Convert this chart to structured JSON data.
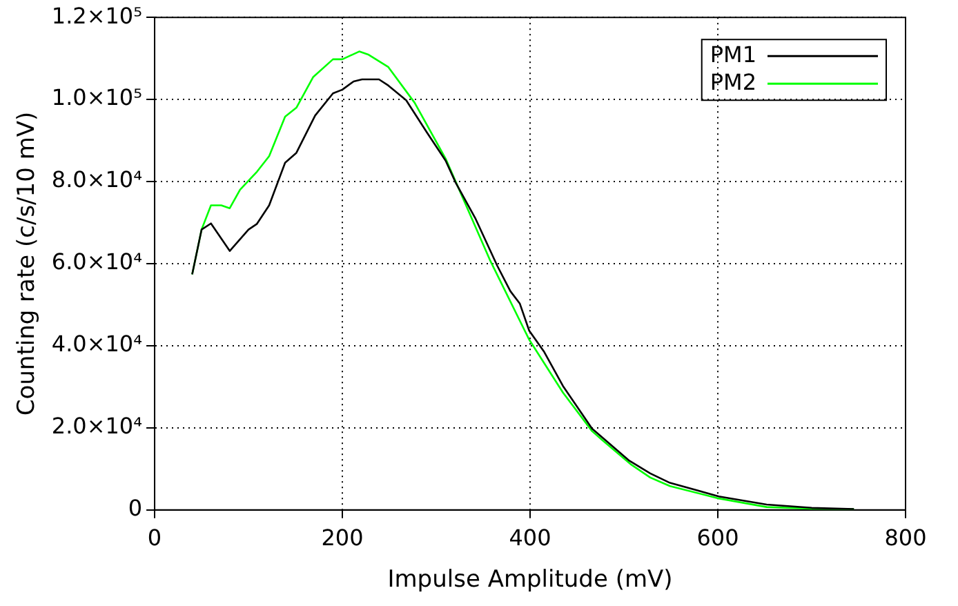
{
  "chart_data": {
    "type": "line",
    "xlabel": "Impulse Amplitude (mV)",
    "ylabel": "Counting rate (c/s/10 mV)",
    "xlim": [
      0,
      800
    ],
    "xticks": [
      0,
      200,
      400,
      600,
      800
    ],
    "ylim": [
      0,
      120000
    ],
    "yticks": [
      {
        "value": 0,
        "label": "0"
      },
      {
        "value": 20000,
        "label": "2.0×10⁴"
      },
      {
        "value": 40000,
        "label": "4.0×10⁴"
      },
      {
        "value": 60000,
        "label": "6.0×10⁴"
      },
      {
        "value": 80000,
        "label": "8.0×10⁴"
      },
      {
        "value": 100000,
        "label": "1.0×10⁵"
      },
      {
        "value": 120000,
        "label": "1.2×10⁵"
      }
    ],
    "grid": true,
    "legend": "top right",
    "marker": "none",
    "line_style": "solid",
    "series": [
      {
        "name": "PM1",
        "color": "#000000",
        "x": [
          40,
          50,
          60,
          80,
          100,
          109,
          122,
          139,
          151,
          171,
          190,
          200,
          212,
          221,
          239,
          249,
          268,
          290,
          310,
          321,
          342,
          365,
          379,
          389,
          399,
          415,
          435,
          466,
          505,
          528,
          549,
          601,
          652,
          700,
          745
        ],
        "values": [
          57400,
          68300,
          69800,
          63100,
          68300,
          69700,
          74200,
          84600,
          87000,
          96100,
          101500,
          102400,
          104400,
          104900,
          104900,
          103400,
          99800,
          92000,
          85100,
          79600,
          70900,
          59500,
          53300,
          50300,
          43700,
          38500,
          30200,
          19800,
          12100,
          8900,
          6600,
          3300,
          1300,
          500,
          200
        ]
      },
      {
        "name": "PM2",
        "color": "#00ff00",
        "x": [
          40,
          50,
          60,
          71,
          80,
          91,
          109,
          122,
          139,
          151,
          169,
          190,
          200,
          218,
          228,
          249,
          277,
          310,
          357,
          399,
          435,
          466,
          477,
          508,
          528,
          549,
          601,
          652,
          700,
          745
        ],
        "values": [
          57400,
          68300,
          74200,
          74200,
          73500,
          78000,
          82400,
          86200,
          95800,
          98000,
          105500,
          109800,
          109800,
          111700,
          110900,
          107900,
          99200,
          85600,
          61000,
          41500,
          28600,
          19200,
          17000,
          11000,
          7900,
          5800,
          2800,
          700,
          300,
          200
        ]
      }
    ]
  }
}
